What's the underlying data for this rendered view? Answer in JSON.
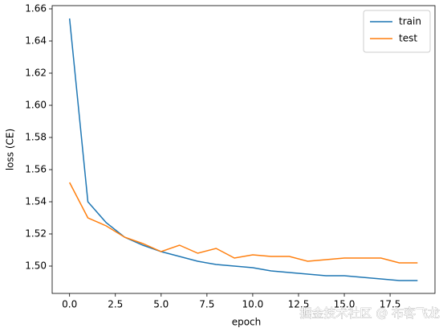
{
  "chart_data": {
    "type": "line",
    "x_label": "epoch",
    "y_label": "loss (CE)",
    "x": [
      0,
      1,
      2,
      3,
      4,
      5,
      6,
      7,
      8,
      9,
      10,
      11,
      12,
      13,
      14,
      15,
      16,
      17,
      18,
      19
    ],
    "series": [
      {
        "name": "train",
        "color": "#1f77b4",
        "values": [
          1.654,
          1.54,
          1.527,
          1.518,
          1.513,
          1.509,
          1.506,
          1.503,
          1.501,
          1.5,
          1.499,
          1.497,
          1.496,
          1.495,
          1.494,
          1.494,
          1.493,
          1.492,
          1.491,
          1.491
        ]
      },
      {
        "name": "test",
        "color": "#ff7f0e",
        "values": [
          1.552,
          1.53,
          1.525,
          1.518,
          1.514,
          1.509,
          1.513,
          1.508,
          1.511,
          1.505,
          1.507,
          1.506,
          1.506,
          1.503,
          1.504,
          1.505,
          1.505,
          1.505,
          1.502,
          1.502
        ]
      }
    ],
    "xlim": [
      -0.95,
      19.95
    ],
    "ylim": [
      1.483,
      1.662
    ],
    "xticks": [
      {
        "value": 0,
        "label": "0.0"
      },
      2.5,
      {
        "value": 5,
        "label": "5.0"
      },
      7.5,
      {
        "value": 10,
        "label": "10.0"
      },
      12.5,
      {
        "value": 15,
        "label": "15.0"
      },
      17.5
    ],
    "yticks": [
      {
        "value": 1.5,
        "label": "1.50"
      },
      1.52,
      1.54,
      1.56,
      1.58,
      {
        "value": 1.6,
        "label": "1.60"
      },
      1.62,
      1.64,
      1.66
    ],
    "legend": "upper right",
    "grid": false
  },
  "watermark": "掘金技术社区 @ 布客飞龙"
}
